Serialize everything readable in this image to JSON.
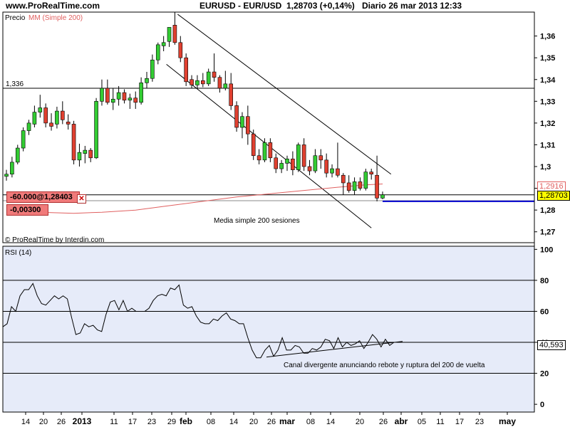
{
  "header": {
    "site": "www.ProRealTime.com",
    "instrument": "EURUSD - EUR/USD",
    "price_change": "1,28703 (+0,14%)",
    "period_date": "Diario  26 mar 2013 12:33"
  },
  "panels": {
    "price_label": "Precio",
    "ma_label": "MM (Simple 200)",
    "credit": "© ProRealTime by Interdin.com",
    "rsi_label": "RSI (14)"
  },
  "annotations": {
    "level_label": "1,336",
    "ma_note": "Media simple 200 sesiones",
    "rsi_note": "Canal divergente anunciando rebote y ruptura del 200 de vuelta",
    "trade_line1": "-60.000@1,28403",
    "trade_line2": "-0,00300",
    "ma_value": "1,2916",
    "last_price": "1,28703",
    "rsi_value": "40,593"
  },
  "colors": {
    "up": "#33cc33",
    "down": "#e04030",
    "ma": "#e06060",
    "position": "#0000cc",
    "rsi_bg": "#e6ebf9",
    "trade_box": "#f07a7a",
    "last_price_bg": "#ffff00"
  },
  "chart_data": {
    "type": "candlestick",
    "title": "EURUSD - EUR/USD",
    "x_labels": [
      "14",
      "20",
      "26",
      "2013",
      "11",
      "17",
      "23",
      "29",
      "feb",
      "08",
      "14",
      "20",
      "26",
      "mar",
      "08",
      "14",
      "20",
      "26",
      "abr",
      "05",
      "11",
      "17",
      "23",
      "may"
    ],
    "y_ticks": [
      "1,36",
      "1,35",
      "1,34",
      "1,33",
      "1,32",
      "1,31",
      "1,3",
      "1,29",
      "1,28",
      "1,27"
    ],
    "ylim": [
      1.265,
      1.371
    ],
    "candles": [
      {
        "o": 1.2955,
        "h": 1.2985,
        "l": 1.2935,
        "c": 1.2965
      },
      {
        "o": 1.2965,
        "h": 1.3045,
        "l": 1.295,
        "c": 1.302
      },
      {
        "o": 1.302,
        "h": 1.31,
        "l": 1.301,
        "c": 1.3085
      },
      {
        "o": 1.3085,
        "h": 1.318,
        "l": 1.307,
        "c": 1.3165
      },
      {
        "o": 1.3165,
        "h": 1.3215,
        "l": 1.3145,
        "c": 1.32
      },
      {
        "o": 1.3195,
        "h": 1.328,
        "l": 1.318,
        "c": 1.325
      },
      {
        "o": 1.325,
        "h": 1.333,
        "l": 1.3225,
        "c": 1.327
      },
      {
        "o": 1.327,
        "h": 1.329,
        "l": 1.318,
        "c": 1.32
      },
      {
        "o": 1.32,
        "h": 1.3245,
        "l": 1.3165,
        "c": 1.3185
      },
      {
        "o": 1.3195,
        "h": 1.3275,
        "l": 1.3175,
        "c": 1.3255
      },
      {
        "o": 1.3255,
        "h": 1.33,
        "l": 1.3195,
        "c": 1.3215
      },
      {
        "o": 1.3205,
        "h": 1.324,
        "l": 1.317,
        "c": 1.3195
      },
      {
        "o": 1.3195,
        "h": 1.321,
        "l": 1.301,
        "c": 1.303
      },
      {
        "o": 1.303,
        "h": 1.3105,
        "l": 1.3,
        "c": 1.3065
      },
      {
        "o": 1.306,
        "h": 1.3095,
        "l": 1.3015,
        "c": 1.3075
      },
      {
        "o": 1.3075,
        "h": 1.3085,
        "l": 1.302,
        "c": 1.304
      },
      {
        "o": 1.304,
        "h": 1.3315,
        "l": 1.3035,
        "c": 1.33
      },
      {
        "o": 1.33,
        "h": 1.34,
        "l": 1.328,
        "c": 1.336
      },
      {
        "o": 1.336,
        "h": 1.34,
        "l": 1.3285,
        "c": 1.3295
      },
      {
        "o": 1.3295,
        "h": 1.336,
        "l": 1.326,
        "c": 1.331
      },
      {
        "o": 1.331,
        "h": 1.337,
        "l": 1.328,
        "c": 1.334
      },
      {
        "o": 1.334,
        "h": 1.3355,
        "l": 1.329,
        "c": 1.3305
      },
      {
        "o": 1.3305,
        "h": 1.3335,
        "l": 1.3265,
        "c": 1.3315
      },
      {
        "o": 1.3315,
        "h": 1.3345,
        "l": 1.3265,
        "c": 1.3295
      },
      {
        "o": 1.3295,
        "h": 1.341,
        "l": 1.3285,
        "c": 1.3385
      },
      {
        "o": 1.3385,
        "h": 1.3435,
        "l": 1.336,
        "c": 1.3405
      },
      {
        "o": 1.3405,
        "h": 1.3515,
        "l": 1.339,
        "c": 1.349
      },
      {
        "o": 1.349,
        "h": 1.357,
        "l": 1.347,
        "c": 1.356
      },
      {
        "o": 1.3555,
        "h": 1.36,
        "l": 1.353,
        "c": 1.357
      },
      {
        "o": 1.3575,
        "h": 1.364,
        "l": 1.355,
        "c": 1.364
      },
      {
        "o": 1.365,
        "h": 1.371,
        "l": 1.356,
        "c": 1.357
      },
      {
        "o": 1.357,
        "h": 1.36,
        "l": 1.348,
        "c": 1.35
      },
      {
        "o": 1.35,
        "h": 1.352,
        "l": 1.337,
        "c": 1.339
      },
      {
        "o": 1.34,
        "h": 1.342,
        "l": 1.336,
        "c": 1.3375
      },
      {
        "o": 1.3375,
        "h": 1.342,
        "l": 1.3355,
        "c": 1.3395
      },
      {
        "o": 1.3395,
        "h": 1.343,
        "l": 1.3365,
        "c": 1.338
      },
      {
        "o": 1.338,
        "h": 1.345,
        "l": 1.337,
        "c": 1.3435
      },
      {
        "o": 1.3435,
        "h": 1.352,
        "l": 1.339,
        "c": 1.341
      },
      {
        "o": 1.341,
        "h": 1.342,
        "l": 1.334,
        "c": 1.336
      },
      {
        "o": 1.336,
        "h": 1.344,
        "l": 1.335,
        "c": 1.338
      },
      {
        "o": 1.338,
        "h": 1.343,
        "l": 1.326,
        "c": 1.328
      },
      {
        "o": 1.328,
        "h": 1.33,
        "l": 1.316,
        "c": 1.318
      },
      {
        "o": 1.318,
        "h": 1.325,
        "l": 1.313,
        "c": 1.323
      },
      {
        "o": 1.323,
        "h": 1.328,
        "l": 1.31,
        "c": 1.315
      },
      {
        "o": 1.315,
        "h": 1.317,
        "l": 1.303,
        "c": 1.305
      },
      {
        "o": 1.305,
        "h": 1.308,
        "l": 1.301,
        "c": 1.303
      },
      {
        "o": 1.303,
        "h": 1.313,
        "l": 1.302,
        "c": 1.311
      },
      {
        "o": 1.311,
        "h": 1.313,
        "l": 1.302,
        "c": 1.304
      },
      {
        "o": 1.304,
        "h": 1.306,
        "l": 1.297,
        "c": 1.299
      },
      {
        "o": 1.299,
        "h": 1.303,
        "l": 1.297,
        "c": 1.3015
      },
      {
        "o": 1.3015,
        "h": 1.305,
        "l": 1.298,
        "c": 1.3035
      },
      {
        "o": 1.3035,
        "h": 1.307,
        "l": 1.296,
        "c": 1.2985
      },
      {
        "o": 1.2985,
        "h": 1.311,
        "l": 1.2975,
        "c": 1.31
      },
      {
        "o": 1.31,
        "h": 1.313,
        "l": 1.298,
        "c": 1.3
      },
      {
        "o": 1.3,
        "h": 1.303,
        "l": 1.296,
        "c": 1.298
      },
      {
        "o": 1.298,
        "h": 1.308,
        "l": 1.297,
        "c": 1.305
      },
      {
        "o": 1.305,
        "h": 1.308,
        "l": 1.299,
        "c": 1.303
      },
      {
        "o": 1.303,
        "h": 1.306,
        "l": 1.295,
        "c": 1.297
      },
      {
        "o": 1.297,
        "h": 1.301,
        "l": 1.295,
        "c": 1.299
      },
      {
        "o": 1.299,
        "h": 1.311,
        "l": 1.295,
        "c": 1.296
      },
      {
        "o": 1.296,
        "h": 1.297,
        "l": 1.287,
        "c": 1.2925
      },
      {
        "o": 1.2925,
        "h": 1.296,
        "l": 1.288,
        "c": 1.289
      },
      {
        "o": 1.289,
        "h": 1.295,
        "l": 1.287,
        "c": 1.293
      },
      {
        "o": 1.293,
        "h": 1.295,
        "l": 1.289,
        "c": 1.29
      },
      {
        "o": 1.29,
        "h": 1.299,
        "l": 1.289,
        "c": 1.2975
      },
      {
        "o": 1.2975,
        "h": 1.299,
        "l": 1.294,
        "c": 1.2965
      },
      {
        "o": 1.296,
        "h": 1.305,
        "l": 1.284,
        "c": 1.2855
      },
      {
        "o": 1.2855,
        "h": 1.2885,
        "l": 1.285,
        "c": 1.287
      }
    ],
    "ma200": [
      [
        0,
        1.28
      ],
      [
        6,
        1.279
      ],
      [
        12,
        1.2785
      ],
      [
        17,
        1.279
      ],
      [
        23,
        1.28
      ],
      [
        29,
        1.282
      ],
      [
        35,
        1.284
      ],
      [
        41,
        1.286
      ],
      [
        47,
        1.2875
      ],
      [
        53,
        1.289
      ],
      [
        59,
        1.2905
      ],
      [
        64,
        1.2916
      ],
      [
        67,
        1.292
      ]
    ],
    "lines": [
      {
        "from": [
          30.5,
          1.37
        ],
        "to": [
          68.5,
          1.2965
        ]
      },
      {
        "from": [
          28.5,
          1.347
        ],
        "to": [
          65.0,
          1.2718
        ]
      }
    ],
    "horizontal_levels": [
      1.336,
      1.2843
    ],
    "position_level": 1.28403,
    "rsi": {
      "label": "RSI (14)",
      "ylim": [
        -5,
        102
      ],
      "y_ticks": [
        "100",
        "80",
        "60",
        "40",
        "20",
        "0"
      ],
      "levels": [
        80,
        60,
        40,
        20
      ],
      "current": 40.593,
      "values": [
        50,
        52,
        63,
        60,
        70,
        74,
        74,
        78,
        70,
        65,
        64,
        67,
        70,
        68,
        70,
        68,
        56,
        45,
        46,
        52,
        50,
        51,
        48,
        47,
        58,
        66,
        67,
        61,
        67,
        60,
        62,
        60,
        60,
        60,
        62,
        67,
        70,
        71,
        70,
        75,
        74,
        77,
        64,
        62,
        63,
        57,
        53,
        52,
        52,
        55,
        54,
        57,
        59,
        55,
        54,
        52,
        52,
        43,
        35,
        30,
        30,
        35,
        38,
        31,
        35,
        43,
        35,
        35,
        38,
        37,
        33,
        33,
        36,
        35,
        37,
        42,
        41,
        36,
        43,
        37,
        40,
        38,
        39,
        41,
        36,
        40,
        45,
        42,
        37,
        42,
        38,
        40,
        40,
        40
      ]
    },
    "rsi_divergence_line": {
      "from": [
        374,
        30.5
      ],
      "to": [
        565,
        40.6
      ]
    }
  }
}
